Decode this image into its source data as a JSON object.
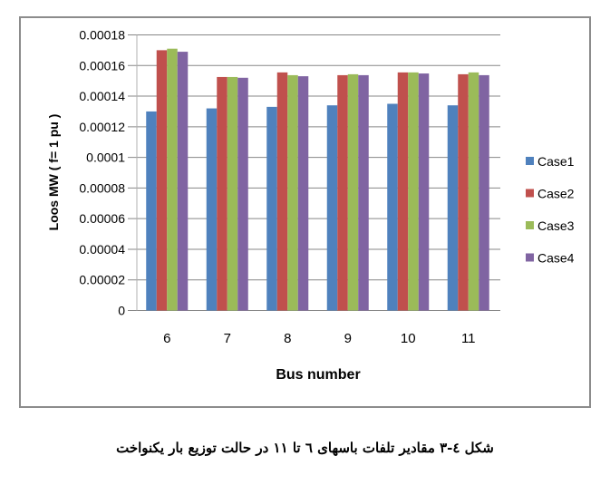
{
  "chart_data": {
    "type": "bar",
    "categories": [
      "6",
      "7",
      "8",
      "9",
      "10",
      "11"
    ],
    "series": [
      {
        "name": "Case1",
        "color": "#4f81bd",
        "values": [
          0.00013,
          0.000132,
          0.000133,
          0.000134,
          0.000135,
          0.000134
        ]
      },
      {
        "name": "Case2",
        "color": "#c0504d",
        "values": [
          0.00017,
          0.0001525,
          0.0001555,
          0.0001537,
          0.0001555,
          0.0001543
        ]
      },
      {
        "name": "Case3",
        "color": "#9bbb59",
        "values": [
          0.000171,
          0.0001525,
          0.0001537,
          0.0001543,
          0.0001555,
          0.0001555
        ]
      },
      {
        "name": "Case4",
        "color": "#8064a2",
        "values": [
          0.000169,
          0.000152,
          0.000153,
          0.0001537,
          0.0001548,
          0.0001537
        ]
      }
    ],
    "xlabel": "Bus number",
    "ylabel": "Loos MW ( f= 1 pu )",
    "ylim": [
      0,
      0.00018
    ],
    "yticks": [
      "0",
      "0.00002",
      "0.00004",
      "0.00006",
      "0.00008",
      "0.0001",
      "0.00012",
      "0.00014",
      "0.00016",
      "0.00018"
    ],
    "grid": true,
    "legend": "right"
  },
  "caption": "شکل ٤-٣ مقادیر تلفات باسهای ٦ تا ١١ در حالت توزیع بار یکنواخت"
}
